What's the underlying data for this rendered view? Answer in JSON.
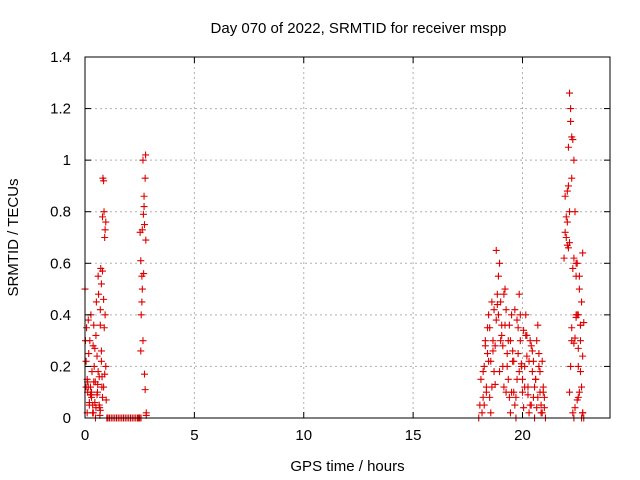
{
  "chart_data": {
    "type": "scatter",
    "title": "Day 070 of 2022, SRMTID for receiver mspp",
    "xlabel": "GPS time / hours",
    "ylabel": "SRMTID / TECUs",
    "xlim": [
      0,
      24
    ],
    "ylim": [
      0,
      1.4
    ],
    "grid": true,
    "marker": "+",
    "colors": {
      "points": "#dd0000",
      "grid": "#b0b0b0",
      "frame": "#000000"
    },
    "x_ticks": [
      0,
      5,
      10,
      15,
      20
    ],
    "x_tick_labels": [
      "0",
      "5",
      "10",
      "15",
      "20"
    ],
    "y_ticks": [
      0,
      0.2,
      0.4,
      0.6,
      0.8,
      1.0,
      1.2,
      1.4
    ],
    "y_tick_labels": [
      "0",
      "0.2",
      "0.4",
      "0.6",
      "0.8",
      "1",
      "1.2",
      "1.4"
    ],
    "series": [
      {
        "x": [
          0.0,
          0.02,
          0.05,
          0.07,
          0.1,
          0.12,
          0.15,
          0.17,
          0.2,
          0.22,
          0.25,
          0.27,
          0.3,
          0.32,
          0.35,
          0.37,
          0.4,
          0.42,
          0.45,
          0.47,
          0.5,
          0.52,
          0.55,
          0.57,
          0.6,
          0.62,
          0.65,
          0.67,
          0.7,
          0.72,
          0.75,
          0.77,
          0.8,
          0.82,
          0.85,
          0.87,
          0.9,
          0.92,
          0.95,
          0.97,
          1.0,
          0.1,
          0.2,
          0.3,
          0.4,
          0.5,
          0.55,
          0.6,
          0.7,
          0.8,
          0.85,
          0.15,
          0.25,
          0.35,
          0.45,
          0.65,
          0.75,
          0.05,
          0.12,
          0.28,
          0.38,
          0.48,
          0.58,
          0.68,
          0.78,
          0.88,
          0.92,
          0.95,
          0.9,
          0.85,
          0.8,
          0.75,
          0.7,
          1.05,
          1.12,
          1.2,
          1.28,
          1.36,
          1.44,
          1.52,
          1.6,
          1.68,
          1.76,
          1.84,
          1.92,
          2.0,
          2.08,
          2.16,
          2.24,
          2.32,
          2.4,
          2.48,
          2.56,
          2.45,
          2.5,
          2.52,
          2.55,
          2.57,
          2.6,
          2.62,
          2.65,
          2.67,
          2.7,
          2.72,
          2.75,
          2.77,
          2.8,
          2.6,
          2.65,
          2.7,
          2.75,
          2.8,
          2.55,
          2.62,
          2.68,
          2.72,
          2.78,
          18.0,
          18.05,
          18.1,
          18.15,
          18.2,
          18.25,
          18.3,
          18.35,
          18.4,
          18.45,
          18.5,
          18.55,
          18.6,
          18.65,
          18.7,
          18.75,
          18.8,
          18.85,
          18.9,
          18.95,
          19.0,
          19.05,
          19.1,
          19.15,
          19.2,
          19.25,
          19.3,
          19.35,
          19.4,
          19.45,
          19.5,
          19.55,
          19.6,
          19.65,
          19.7,
          19.75,
          19.8,
          19.85,
          19.9,
          19.95,
          20.0,
          20.05,
          20.1,
          20.15,
          20.2,
          20.25,
          20.3,
          20.35,
          20.4,
          20.45,
          20.5,
          20.55,
          20.6,
          20.65,
          20.7,
          20.75,
          20.8,
          20.85,
          20.9,
          20.95,
          21.0,
          21.05,
          18.2,
          18.3,
          18.4,
          18.5,
          18.6,
          18.7,
          18.8,
          18.9,
          19.0,
          19.1,
          19.2,
          19.3,
          19.4,
          19.5,
          19.6,
          19.7,
          19.8,
          19.9,
          20.0,
          20.1,
          20.2,
          20.3,
          20.4,
          20.5,
          20.6,
          20.7,
          20.8,
          20.9,
          21.0,
          18.25,
          18.45,
          18.65,
          18.85,
          19.05,
          19.25,
          19.45,
          19.65,
          19.85,
          20.05,
          20.25,
          20.45,
          20.65,
          20.85,
          18.35,
          18.55,
          18.75,
          18.95,
          19.15,
          19.35,
          19.55,
          19.75,
          19.95,
          20.15,
          20.35,
          20.55,
          20.75,
          20.95,
          21.9,
          21.95,
          22.0,
          22.05,
          22.1,
          22.15,
          22.2,
          22.25,
          22.3,
          22.35,
          22.4,
          22.45,
          22.5,
          22.55,
          22.6,
          22.65,
          22.7,
          22.75,
          22.8,
          22.0,
          22.05,
          22.1,
          22.15,
          22.2,
          22.25,
          22.3,
          22.35,
          22.4,
          22.45,
          22.5,
          22.55,
          22.6,
          22.65,
          22.7,
          22.75,
          21.95,
          22.05,
          22.15,
          22.25,
          22.35,
          22.45,
          22.55,
          22.65,
          22.75,
          22.1,
          22.2,
          22.3,
          22.4,
          22.5,
          22.6,
          22.7,
          22.8,
          22.15,
          22.25,
          22.35,
          22.45,
          22.55,
          22.65,
          22.75
        ],
        "y": [
          0.5,
          0.3,
          0.22,
          0.35,
          0.15,
          0.1,
          0.38,
          0.25,
          0.05,
          0.3,
          0.12,
          0.4,
          0.08,
          0.18,
          0.02,
          0.28,
          0.36,
          0.2,
          0.06,
          0.14,
          0.32,
          0.45,
          0.24,
          0.1,
          0.55,
          0.48,
          0.16,
          0.04,
          0.36,
          0.58,
          0.26,
          0.12,
          0.78,
          0.93,
          0.92,
          0.8,
          0.7,
          0.4,
          0.2,
          0.07,
          0.0,
          0.02,
          0.06,
          0.1,
          0.14,
          0.04,
          0.09,
          0.18,
          0.03,
          0.08,
          0.12,
          0.12,
          0.09,
          0.05,
          0.27,
          0.05,
          0.22,
          0.12,
          0.14,
          0.09,
          0.02,
          0.0,
          0.13,
          0.01,
          0.16,
          0.35,
          0.73,
          0.76,
          0.17,
          0.46,
          0.57,
          0.52,
          0.42,
          0.0,
          0.0,
          0.0,
          0.0,
          0.0,
          0.0,
          0.0,
          0.0,
          0.0,
          0.0,
          0.0,
          0.0,
          0.0,
          0.0,
          0.0,
          0.0,
          0.0,
          0.0,
          0.0,
          0.0,
          0.0,
          0.0,
          0.72,
          0.61,
          0.4,
          0.55,
          0.73,
          1.0,
          0.79,
          0.82,
          0.75,
          0.93,
          1.02,
          0.02,
          0.45,
          0.3,
          0.86,
          0.11,
          0.01,
          0.26,
          0.5,
          0.56,
          0.17,
          0.69,
          0.0,
          0.05,
          0.15,
          0.02,
          0.08,
          0.2,
          0.3,
          0.12,
          0.25,
          0.4,
          0.35,
          0.22,
          0.45,
          0.3,
          0.18,
          0.28,
          0.38,
          0.48,
          0.55,
          0.6,
          0.45,
          0.32,
          0.2,
          0.12,
          0.36,
          0.42,
          0.25,
          0.15,
          0.08,
          0.3,
          0.4,
          0.22,
          0.1,
          0.05,
          0.0,
          0.15,
          0.35,
          0.48,
          0.3,
          0.2,
          0.1,
          0.04,
          0.2,
          0.32,
          0.24,
          0.12,
          0.02,
          0.3,
          0.28,
          0.18,
          0.08,
          0.0,
          0.15,
          0.3,
          0.36,
          0.25,
          0.1,
          0.05,
          0.22,
          0.12,
          0.04,
          0.0,
          0.18,
          0.28,
          0.35,
          0.08,
          0.12,
          0.42,
          0.65,
          0.4,
          0.3,
          0.28,
          0.5,
          0.2,
          0.36,
          0.1,
          0.22,
          0.08,
          0.25,
          0.4,
          0.15,
          0.12,
          0.32,
          0.22,
          0.05,
          0.22,
          0.15,
          0.08,
          0.18,
          0.02,
          0.08,
          0.05,
          0.22,
          0.26,
          0.44,
          0.36,
          0.1,
          0.02,
          0.42,
          0.18,
          0.34,
          0.09,
          0.26,
          0.04,
          0.02,
          0.1,
          0.02,
          0.13,
          0.18,
          0.48,
          0.3,
          0.26,
          0.38,
          0.21,
          0.4,
          0.05,
          0.12,
          0.2,
          0.1,
          0.62,
          0.72,
          0.78,
          0.88,
          1.05,
          0.1,
          0.2,
          0.3,
          0.02,
          0.0,
          0.04,
          0.55,
          0.6,
          0.4,
          0.5,
          0.36,
          0.0,
          0.02,
          0.0,
          0.7,
          0.76,
          0.9,
          1.26,
          1.2,
          1.09,
          1.08,
          1.0,
          0.8,
          0.6,
          0.4,
          0.2,
          0.1,
          0.3,
          0.12,
          0.02,
          0.86,
          0.67,
          0.68,
          0.93,
          0.62,
          0.39,
          0.27,
          0.18,
          0.64,
          0.66,
          1.15,
          0.58,
          0.31,
          0.07,
          0.55,
          0.45,
          0.37,
          0.8,
          0.35,
          0.29,
          0.4,
          0.08,
          0.36,
          0.24
        ]
      }
    ]
  }
}
